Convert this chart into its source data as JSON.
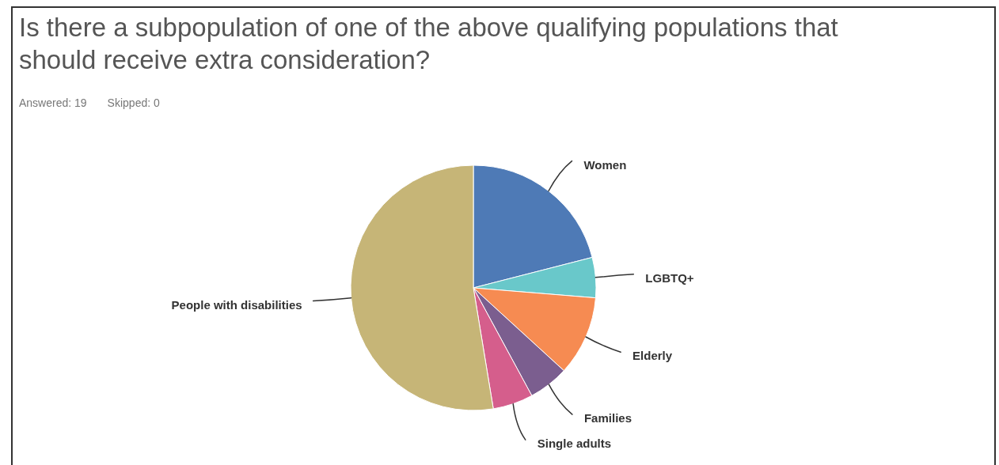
{
  "chart_data": {
    "type": "pie",
    "title": "Is there a subpopulation of one of the above qualifying populations that should receive extra consideration?",
    "annotations": [
      "Answered: 19",
      "Skipped: 0"
    ],
    "categories": [
      "Women",
      "LGBTQ+",
      "Elderly",
      "Families",
      "Single adults",
      "People with disabilities"
    ],
    "values": [
      21,
      5.3,
      10.5,
      5.3,
      5.3,
      52.6
    ],
    "colors": [
      "#4e7ab6",
      "#69c8ca",
      "#f68b52",
      "#7b5e8f",
      "#d55e8c",
      "#c6b577"
    ]
  }
}
